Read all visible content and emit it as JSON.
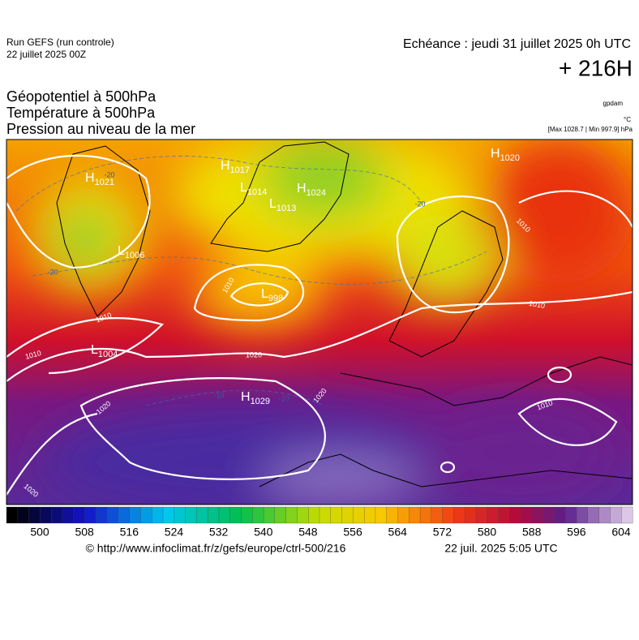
{
  "header": {
    "run": "Run GEFS (run controle)",
    "run_date": "22 juillet 2025 00Z",
    "valid": "Echéance : jeudi 31 juillet 2025 0h UTC",
    "lead": "+ 216H"
  },
  "titles": [
    "Géopotentiel à 500hPa",
    "Température à 500hPa",
    "Pression au niveau de la mer"
  ],
  "units": [
    "gpdam",
    "°C",
    "[Max 1028.7 | Min 997.9] hPa"
  ],
  "centers": [
    {
      "letter": "H",
      "value": "1021"
    },
    {
      "letter": "L",
      "value": "1006"
    },
    {
      "letter": "H",
      "value": "1017"
    },
    {
      "letter": "L",
      "value": "1014"
    },
    {
      "letter": "L",
      "value": "1013"
    },
    {
      "letter": "H",
      "value": "1024"
    },
    {
      "letter": "L",
      "value": "998"
    },
    {
      "letter": "L",
      "value": "1004"
    },
    {
      "letter": "H",
      "value": "1029"
    },
    {
      "letter": "H",
      "value": "1020"
    }
  ],
  "isobar_labels": [
    "1010",
    "1010",
    "1010",
    "1010",
    "1010",
    "1010",
    "1020",
    "1020",
    "1020",
    "1020"
  ],
  "temperature_labels": [
    "-20",
    "-20",
    "-20",
    "-10",
    "-10"
  ],
  "colorbar": {
    "ticks": [
      500,
      508,
      516,
      524,
      532,
      540,
      548,
      556,
      564,
      572,
      580,
      588,
      596,
      604
    ]
  },
  "footer": {
    "url": "© http://www.infoclimat.fr/z/gefs/europe/ctrl-500/216",
    "generated": "22 juil. 2025  5:05 UTC"
  }
}
